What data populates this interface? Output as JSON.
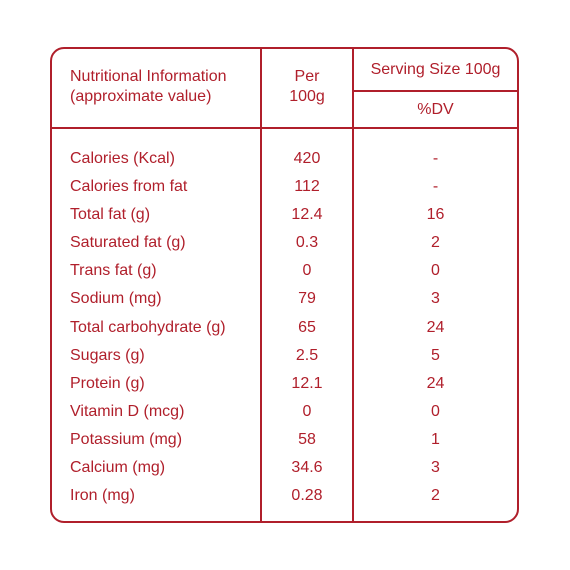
{
  "header": {
    "info_line1": "Nutritional Information",
    "info_line2": "(approximate value)",
    "per_line1": "Per",
    "per_line2": "100g",
    "serving_size": "Serving Size 100g",
    "dv": "%DV"
  },
  "colors": {
    "accent": "#b01f2b",
    "background": "#ffffff"
  },
  "rows": [
    {
      "name": "Calories (Kcal)",
      "per": "420",
      "dv": "-"
    },
    {
      "name": "Calories from fat",
      "per": "112",
      "dv": "-"
    },
    {
      "name": "Total fat (g)",
      "per": "12.4",
      "dv": "16"
    },
    {
      "name": "Saturated fat (g)",
      "per": "0.3",
      "dv": "2"
    },
    {
      "name": "Trans fat (g)",
      "per": "0",
      "dv": "0"
    },
    {
      "name": "Sodium (mg)",
      "per": "79",
      "dv": "3"
    },
    {
      "name": "Total carbohydrate (g)",
      "per": "65",
      "dv": "24"
    },
    {
      "name": "Sugars (g)",
      "per": "2.5",
      "dv": "5"
    },
    {
      "name": "Protein (g)",
      "per": "12.1",
      "dv": "24"
    },
    {
      "name": "Vitamin D (mcg)",
      "per": "0",
      "dv": "0"
    },
    {
      "name": "Potassium (mg)",
      "per": "58",
      "dv": "1"
    },
    {
      "name": "Calcium (mg)",
      "per": "34.6",
      "dv": "3"
    },
    {
      "name": "Iron (mg)",
      "per": "0.28",
      "dv": "2"
    }
  ]
}
